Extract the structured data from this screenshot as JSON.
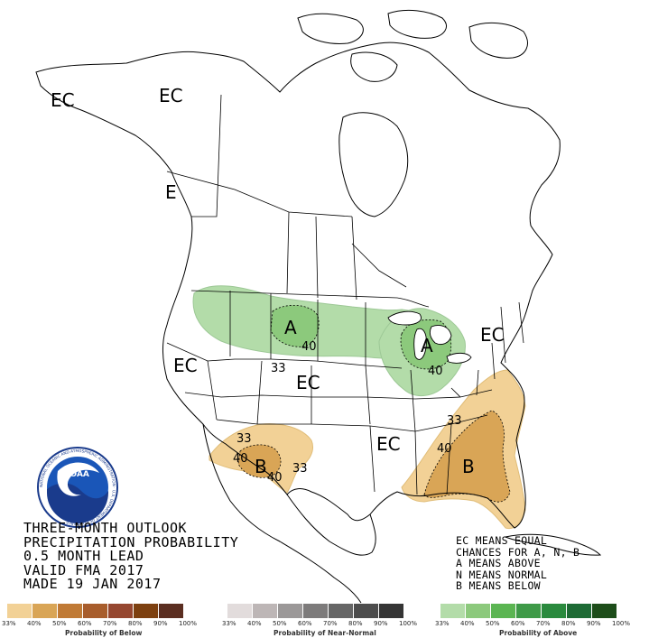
{
  "title_lines": [
    "THREE-MONTH OUTLOOK",
    "PRECIPITATION PROBABILITY",
    "0.5 MONTH LEAD",
    "VALID FMA 2017",
    "MADE 19 JAN 2017"
  ],
  "legend_note": [
    "EC MEANS EQUAL",
    "CHANCES FOR A, N, B",
    "A MEANS ABOVE",
    "N MEANS NORMAL",
    "B MEANS BELOW"
  ],
  "logo": {
    "text": "NOAA",
    "ring_text": "NATIONAL OCEANIC AND ATMOSPHERIC ADMINISTRATION · U.S. DEPARTMENT OF COMMERCE"
  },
  "map_labels": {
    "ec_alaska_west": "EC",
    "ec_alaska_east": "EC",
    "ec_bc": "E",
    "ec_west": "EC",
    "ec_central": "EC",
    "ec_northeast": "EC",
    "ec_southeast": "EC",
    "a_north_plains": "A",
    "a_great_lakes": "A",
    "b_southwest": "B",
    "b_southeast": "B",
    "c40_plains": "40",
    "c33_plains": "33",
    "c40_lakes": "40",
    "c33_sw_top": "33",
    "c40_sw_left": "40",
    "c40_sw_bottom": "40",
    "c33_sw_right": "33",
    "c33_se_top": "33",
    "c40_se": "40"
  },
  "colors": {
    "above_33_40": "#b3dca9",
    "above_40_50": "#8cc97c",
    "below_33_40": "#f2d196",
    "below_40_50": "#d9a556",
    "outline": "#000000"
  },
  "scales": {
    "below": {
      "label": "Probability of Below",
      "ticks": [
        "33%",
        "40%",
        "50%",
        "60%",
        "70%",
        "80%",
        "90%",
        "100%"
      ],
      "colors": [
        "#f2d196",
        "#d9a556",
        "#c07a35",
        "#a85d2c",
        "#964730",
        "#7d4010",
        "#5b2e21"
      ]
    },
    "normal": {
      "label": "Probability of Near-Normal",
      "ticks": [
        "33%",
        "40%",
        "50%",
        "60%",
        "70%",
        "80%",
        "90%",
        "100%"
      ],
      "colors": [
        "#e2dcdc",
        "#bdb6b6",
        "#9b9898",
        "#7d7b7b",
        "#666666",
        "#4d4d4d",
        "#353535"
      ]
    },
    "above": {
      "label": "Probability of Above",
      "ticks": [
        "33%",
        "40%",
        "50%",
        "60%",
        "70%",
        "80%",
        "90%",
        "100%"
      ],
      "colors": [
        "#b3dca9",
        "#8cc97c",
        "#5bb552",
        "#3f9a48",
        "#2a8a3e",
        "#1e6b35",
        "#1d4d1a"
      ]
    }
  }
}
